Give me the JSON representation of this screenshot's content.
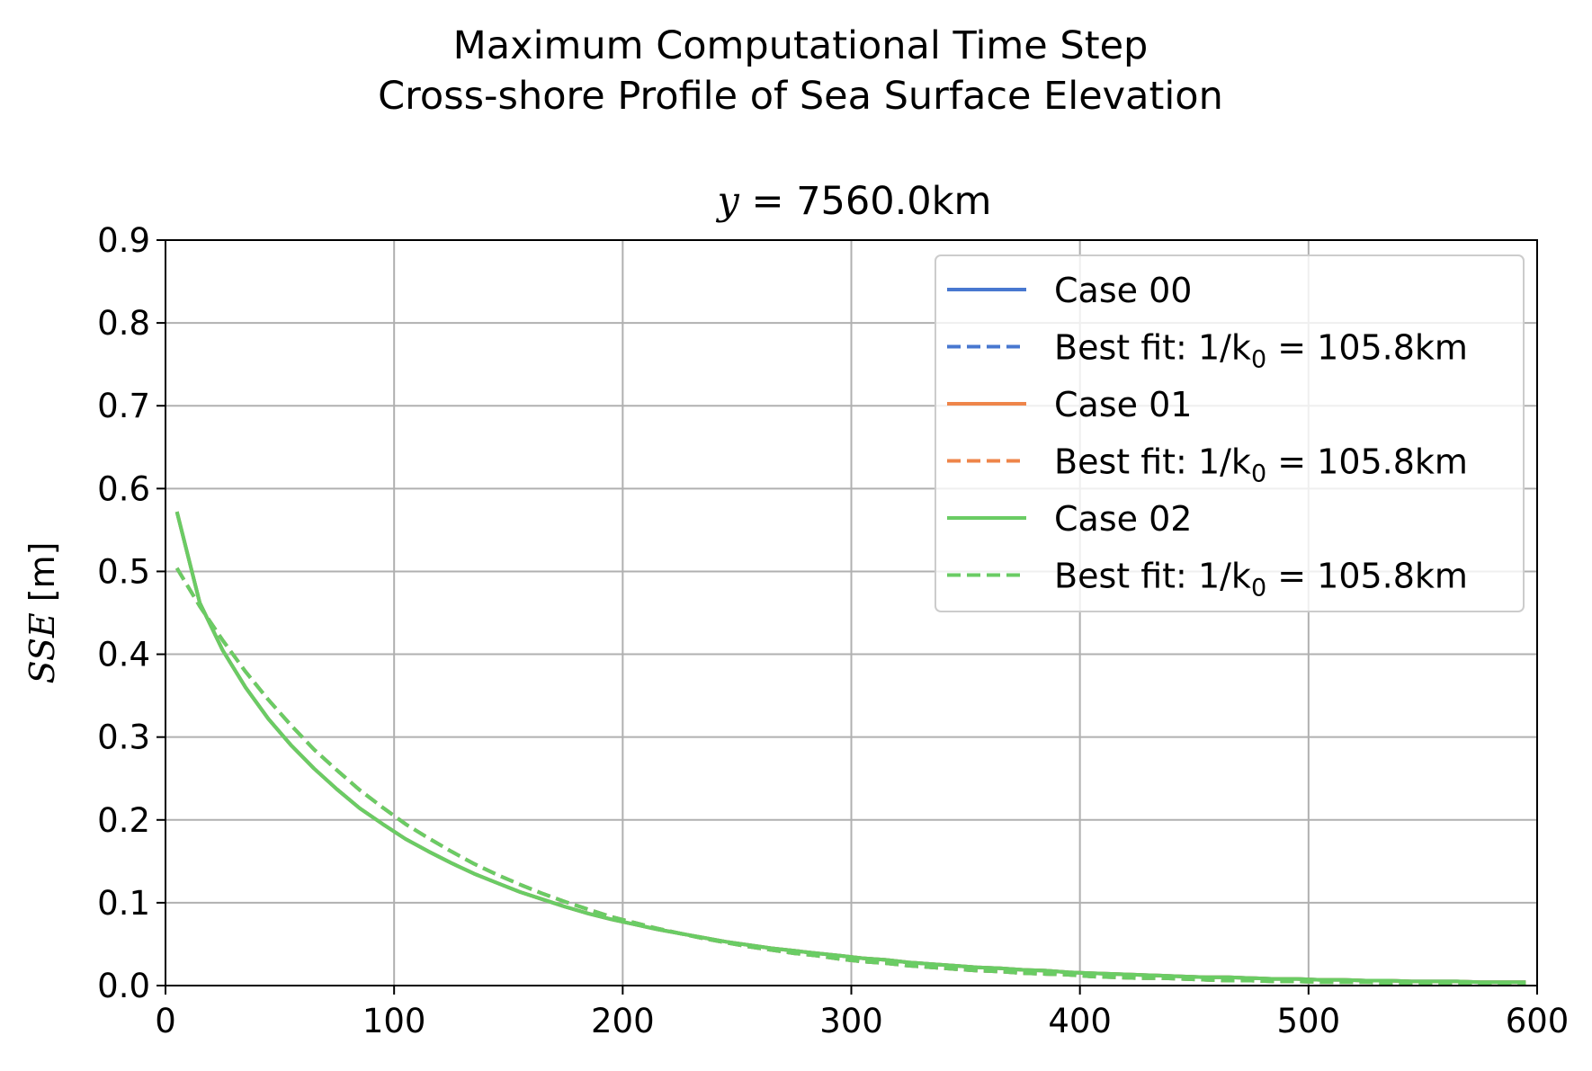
{
  "chart_data": {
    "type": "line",
    "suptitle": [
      "Maximum Computational Time Step",
      "Cross-shore Profile of Sea Surface Elevation"
    ],
    "title": {
      "var": "y",
      "eq": " = 7560.0km"
    },
    "ylabel": {
      "var": "SSE",
      "unit": " [m]"
    },
    "xlim": [
      0,
      600
    ],
    "ylim": [
      0,
      0.9
    ],
    "xticks": [
      "0",
      "100",
      "200",
      "300",
      "400",
      "500",
      "600"
    ],
    "yticks": [
      "0.0",
      "0.1",
      "0.2",
      "0.3",
      "0.4",
      "0.5",
      "0.6",
      "0.7",
      "0.8",
      "0.9"
    ],
    "grid": true,
    "legend_position": "upper right",
    "colors": {
      "case00": "#4878d0",
      "case01": "#ee854a",
      "case02": "#6acc64"
    },
    "x": [
      5,
      15,
      25,
      35,
      45,
      55,
      65,
      75,
      85,
      95,
      105,
      115,
      125,
      135,
      145,
      155,
      165,
      175,
      185,
      195,
      205,
      215,
      225,
      235,
      245,
      255,
      265,
      275,
      285,
      295,
      305,
      315,
      325,
      335,
      345,
      355,
      365,
      375,
      385,
      395,
      405,
      415,
      425,
      435,
      445,
      455,
      465,
      475,
      485,
      495,
      505,
      515,
      525,
      535,
      545,
      555,
      565,
      575,
      585,
      595
    ],
    "series": [
      {
        "name": "Case 00",
        "style": "solid",
        "color": "#4878d0",
        "values": [
          0.572,
          0.462,
          0.405,
          0.36,
          0.322,
          0.29,
          0.262,
          0.237,
          0.214,
          0.195,
          0.177,
          0.162,
          0.148,
          0.135,
          0.124,
          0.113,
          0.104,
          0.095,
          0.087,
          0.08,
          0.074,
          0.068,
          0.063,
          0.058,
          0.053,
          0.049,
          0.045,
          0.042,
          0.039,
          0.036,
          0.033,
          0.031,
          0.028,
          0.026,
          0.024,
          0.022,
          0.021,
          0.019,
          0.018,
          0.016,
          0.015,
          0.014,
          0.013,
          0.012,
          0.011,
          0.01,
          0.01,
          0.009,
          0.008,
          0.008,
          0.007,
          0.007,
          0.006,
          0.006,
          0.005,
          0.005,
          0.005,
          0.004,
          0.004,
          0.004
        ]
      },
      {
        "name": "Best fit: ",
        "label_math": "1/k",
        "label_sub": "0",
        "label_eq": " = 105.8km",
        "style": "dashed",
        "color": "#4878d0",
        "values": [
          0.504,
          0.458,
          0.417,
          0.379,
          0.345,
          0.314,
          0.285,
          0.26,
          0.236,
          0.215,
          0.195,
          0.178,
          0.162,
          0.147,
          0.134,
          0.122,
          0.111,
          0.101,
          0.092,
          0.083,
          0.076,
          0.069,
          0.063,
          0.057,
          0.052,
          0.047,
          0.043,
          0.039,
          0.036,
          0.032,
          0.029,
          0.027,
          0.024,
          0.022,
          0.02,
          0.018,
          0.017,
          0.015,
          0.014,
          0.013,
          0.011,
          0.01,
          0.009,
          0.009,
          0.008,
          0.007,
          0.006,
          0.006,
          0.005,
          0.005,
          0.004,
          0.004,
          0.004,
          0.003,
          0.003,
          0.003,
          0.002,
          0.002,
          0.002,
          0.002
        ]
      },
      {
        "name": "Case 01",
        "style": "solid",
        "color": "#ee854a",
        "values": [
          0.572,
          0.462,
          0.405,
          0.36,
          0.322,
          0.29,
          0.262,
          0.237,
          0.214,
          0.195,
          0.177,
          0.162,
          0.148,
          0.135,
          0.124,
          0.113,
          0.104,
          0.095,
          0.087,
          0.08,
          0.074,
          0.068,
          0.063,
          0.058,
          0.053,
          0.049,
          0.045,
          0.042,
          0.039,
          0.036,
          0.033,
          0.031,
          0.028,
          0.026,
          0.024,
          0.022,
          0.021,
          0.019,
          0.018,
          0.016,
          0.015,
          0.014,
          0.013,
          0.012,
          0.011,
          0.01,
          0.01,
          0.009,
          0.008,
          0.008,
          0.007,
          0.007,
          0.006,
          0.006,
          0.005,
          0.005,
          0.005,
          0.004,
          0.004,
          0.004
        ]
      },
      {
        "name": "Best fit: ",
        "label_math": "1/k",
        "label_sub": "0",
        "label_eq": " = 105.8km",
        "style": "dashed",
        "color": "#ee854a",
        "values": [
          0.504,
          0.458,
          0.417,
          0.379,
          0.345,
          0.314,
          0.285,
          0.26,
          0.236,
          0.215,
          0.195,
          0.178,
          0.162,
          0.147,
          0.134,
          0.122,
          0.111,
          0.101,
          0.092,
          0.083,
          0.076,
          0.069,
          0.063,
          0.057,
          0.052,
          0.047,
          0.043,
          0.039,
          0.036,
          0.032,
          0.029,
          0.027,
          0.024,
          0.022,
          0.02,
          0.018,
          0.017,
          0.015,
          0.014,
          0.013,
          0.011,
          0.01,
          0.009,
          0.009,
          0.008,
          0.007,
          0.006,
          0.006,
          0.005,
          0.005,
          0.004,
          0.004,
          0.004,
          0.003,
          0.003,
          0.003,
          0.002,
          0.002,
          0.002,
          0.002
        ]
      },
      {
        "name": "Case 02",
        "style": "solid",
        "color": "#6acc64",
        "values": [
          0.572,
          0.462,
          0.405,
          0.36,
          0.322,
          0.29,
          0.262,
          0.237,
          0.214,
          0.195,
          0.177,
          0.162,
          0.148,
          0.135,
          0.124,
          0.113,
          0.104,
          0.095,
          0.087,
          0.08,
          0.074,
          0.068,
          0.063,
          0.058,
          0.053,
          0.049,
          0.045,
          0.042,
          0.039,
          0.036,
          0.033,
          0.031,
          0.028,
          0.026,
          0.024,
          0.022,
          0.021,
          0.019,
          0.018,
          0.016,
          0.015,
          0.014,
          0.013,
          0.012,
          0.011,
          0.01,
          0.01,
          0.009,
          0.008,
          0.008,
          0.007,
          0.007,
          0.006,
          0.006,
          0.005,
          0.005,
          0.005,
          0.004,
          0.004,
          0.004
        ]
      },
      {
        "name": "Best fit: ",
        "label_math": "1/k",
        "label_sub": "0",
        "label_eq": " = 105.8km",
        "style": "dashed",
        "color": "#6acc64",
        "values": [
          0.504,
          0.458,
          0.417,
          0.379,
          0.345,
          0.314,
          0.285,
          0.26,
          0.236,
          0.215,
          0.195,
          0.178,
          0.162,
          0.147,
          0.134,
          0.122,
          0.111,
          0.101,
          0.092,
          0.083,
          0.076,
          0.069,
          0.063,
          0.057,
          0.052,
          0.047,
          0.043,
          0.039,
          0.036,
          0.032,
          0.029,
          0.027,
          0.024,
          0.022,
          0.02,
          0.018,
          0.017,
          0.015,
          0.014,
          0.013,
          0.011,
          0.01,
          0.009,
          0.009,
          0.008,
          0.007,
          0.006,
          0.006,
          0.005,
          0.005,
          0.004,
          0.004,
          0.004,
          0.003,
          0.003,
          0.003,
          0.002,
          0.002,
          0.002,
          0.002
        ]
      }
    ]
  }
}
